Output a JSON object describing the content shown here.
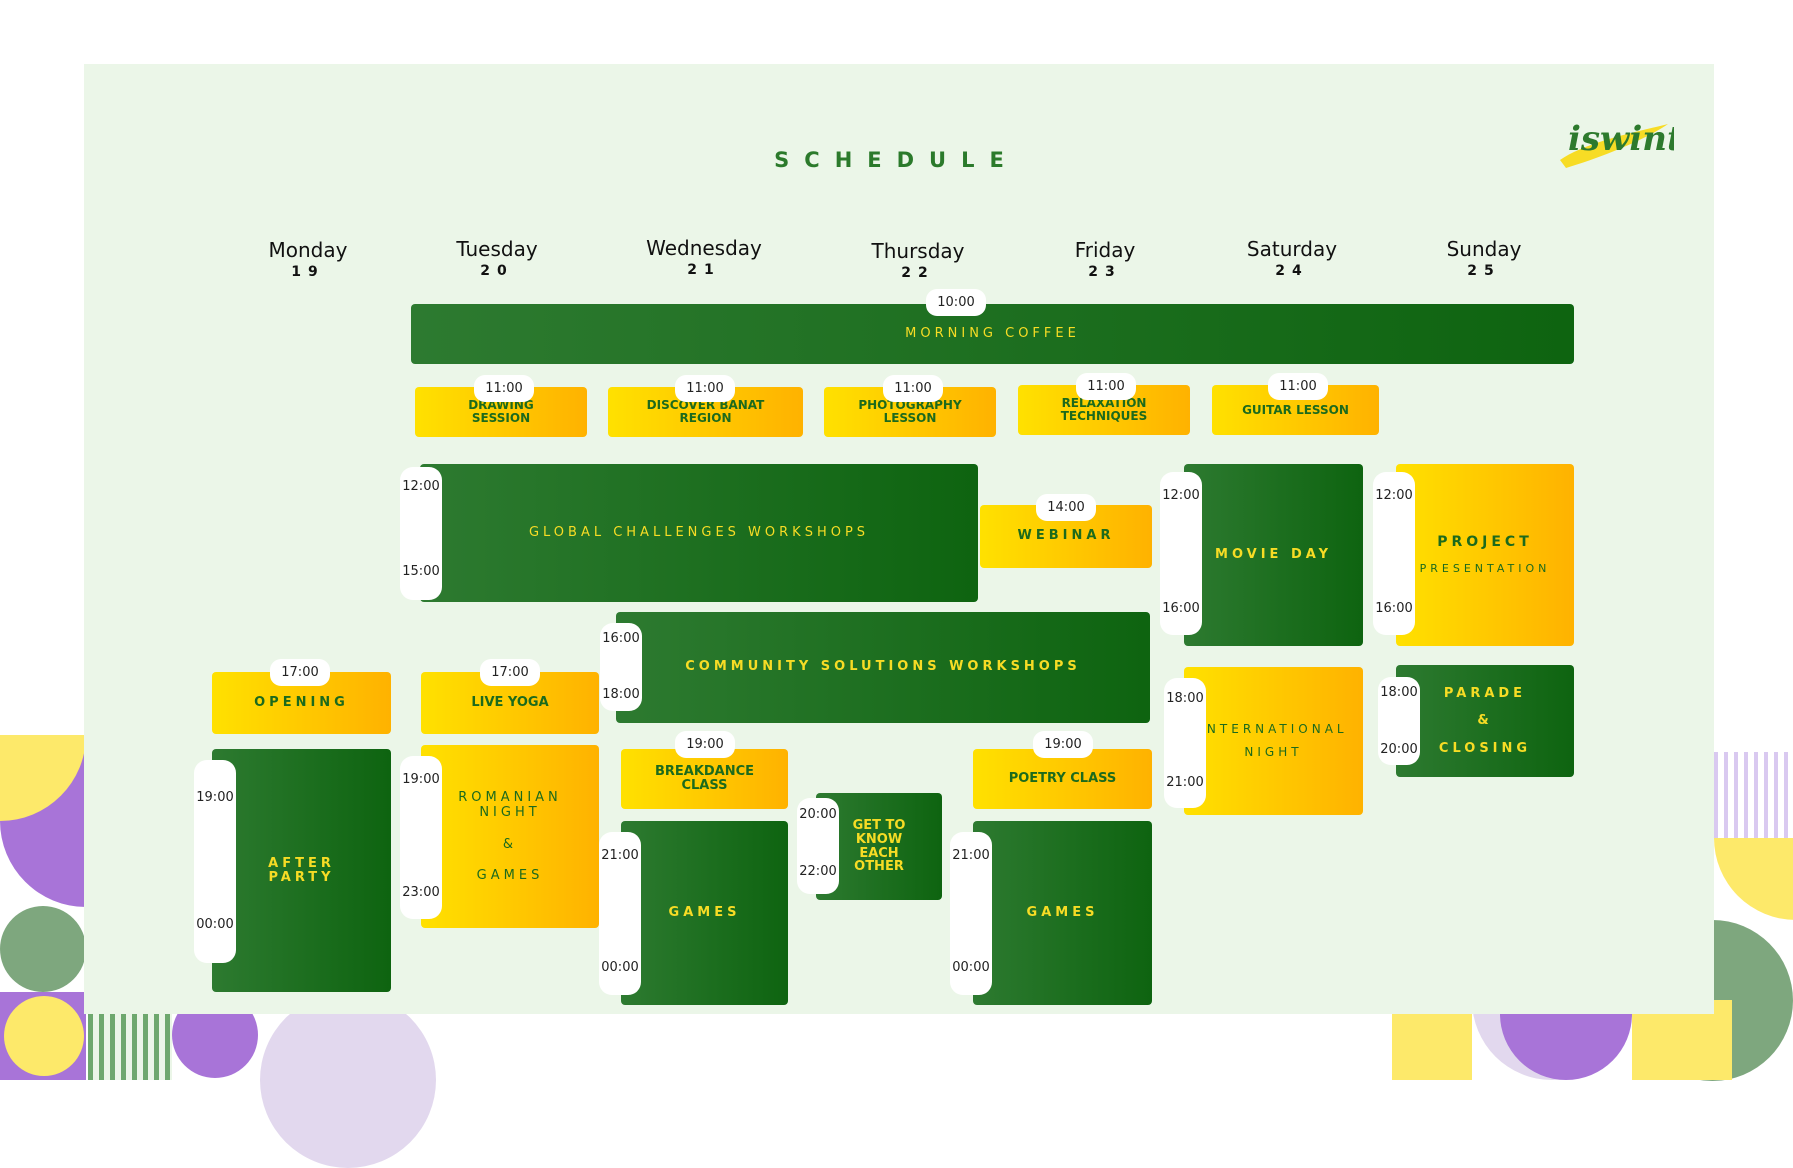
{
  "title": "SCHEDULE",
  "logo_text": "iswint",
  "colors": {
    "green": "#1e6e1e",
    "yellow": "#ffd000",
    "background": "#ebf6e8",
    "accent_purple": "#a874d8"
  },
  "days": [
    {
      "name": "Monday",
      "num": "19"
    },
    {
      "name": "Tuesday",
      "num": "20"
    },
    {
      "name": "Wednesday",
      "num": "21"
    },
    {
      "name": "Thursday",
      "num": "22"
    },
    {
      "name": "Friday",
      "num": "23"
    },
    {
      "name": "Saturday",
      "num": "24"
    },
    {
      "name": "Sunday",
      "num": "25"
    }
  ],
  "events": {
    "morning_coffee": {
      "label": "MORNING COFFEE",
      "time": "10:00"
    },
    "drawing": {
      "label": "DRAWING\nSESSION",
      "time": "11:00"
    },
    "discover": {
      "label": "DISCOVER BANAT\nREGION",
      "time": "11:00"
    },
    "photography": {
      "label": "PHOTOGRAPHY\nLESSON",
      "time": "11:00"
    },
    "relaxation": {
      "label": "RELAXATION\nTECHNIQUES",
      "time": "11:00"
    },
    "guitar": {
      "label": "GUITAR LESSON",
      "time": "11:00"
    },
    "global_workshops": {
      "label": "GLOBAL CHALLENGES WORKSHOPS",
      "start": "12:00",
      "end": "15:00"
    },
    "webinar": {
      "label": "WEBINAR",
      "time": "14:00"
    },
    "movie_day": {
      "label": "MOVIE DAY",
      "start": "12:00",
      "end": "16:00"
    },
    "project": {
      "label": "PROJECT",
      "sub": "PRESENTATION",
      "start": "12:00",
      "end": "16:00"
    },
    "community_workshops": {
      "label": "COMMUNITY SOLUTIONS WORKSHOPS",
      "start": "16:00",
      "end": "18:00"
    },
    "opening": {
      "label": "OPENING",
      "time": "17:00"
    },
    "live_yoga": {
      "label": "LIVE YOGA",
      "time": "17:00"
    },
    "international": {
      "label": "INTERNATIONAL\nNIGHT",
      "start": "18:00",
      "end": "21:00"
    },
    "parade": {
      "label": "PARADE\n&\nCLOSING",
      "start": "18:00",
      "end": "20:00"
    },
    "after_party": {
      "label": "AFTER\nPARTY",
      "start": "19:00",
      "end": "00:00"
    },
    "romanian": {
      "label": "ROMANIAN\nNIGHT\n\n&\n\nGAMES",
      "start": "19:00",
      "end": "23:00"
    },
    "breakdance": {
      "label": "BREAKDANCE\nCLASS",
      "time": "19:00"
    },
    "poetry": {
      "label": "POETRY CLASS",
      "time": "19:00"
    },
    "get_to_know": {
      "label": "GET TO\nKNOW\nEACH\nOTHER",
      "start": "20:00",
      "end": "22:00"
    },
    "games_wed": {
      "label": "GAMES",
      "start": "21:00",
      "end": "00:00"
    },
    "games_fri": {
      "label": "GAMES",
      "start": "21:00",
      "end": "00:00"
    }
  }
}
